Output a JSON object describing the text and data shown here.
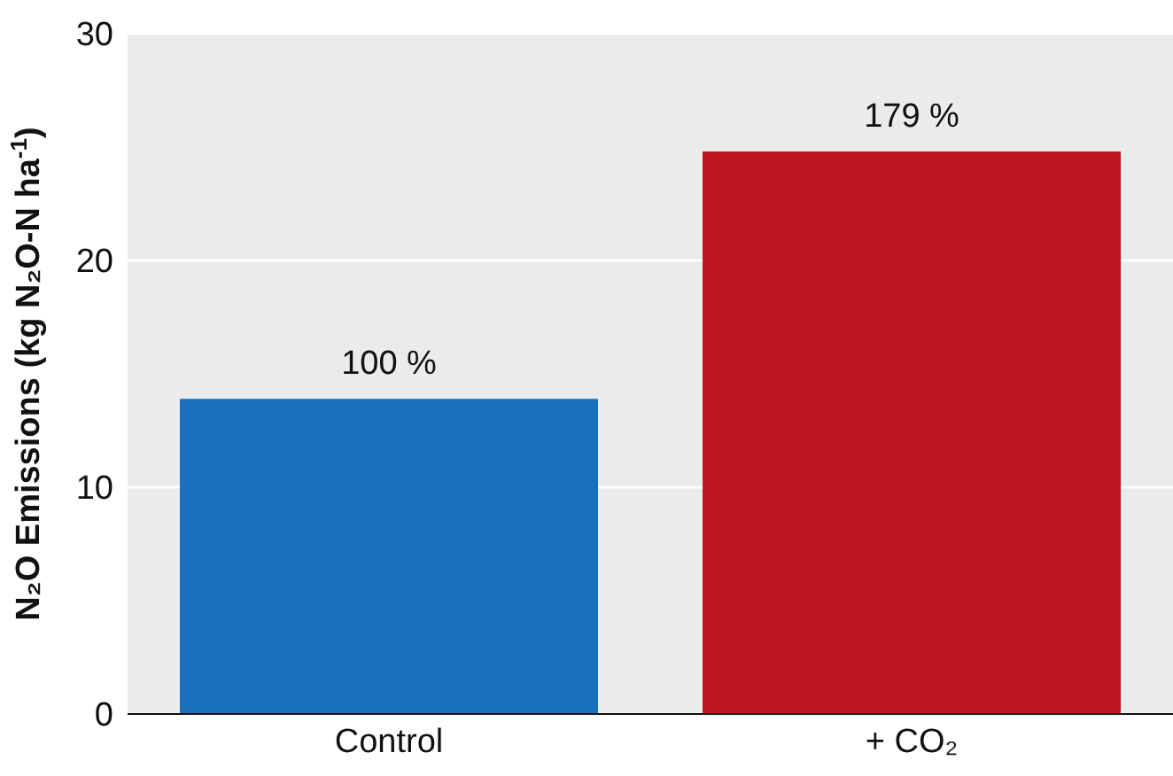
{
  "chart_data": {
    "type": "bar",
    "ylabel": "N₂O Emissions (kg N₂O-N ha$^{-1}$)",
    "categories": [
      "Control",
      "+ CO₂"
    ],
    "values": [
      13.9,
      24.8
    ],
    "colors": [
      "#1a6fba",
      "#be1622"
    ],
    "annotations": [
      {
        "text": "100 %",
        "x": "Control",
        "y": 13.9
      },
      {
        "text": "179 %",
        "x": "+ CO₂",
        "y": 24.8
      }
    ],
    "ylim": [
      0,
      30
    ],
    "yticks": [
      0,
      10,
      20,
      30
    ],
    "grid": "y"
  }
}
